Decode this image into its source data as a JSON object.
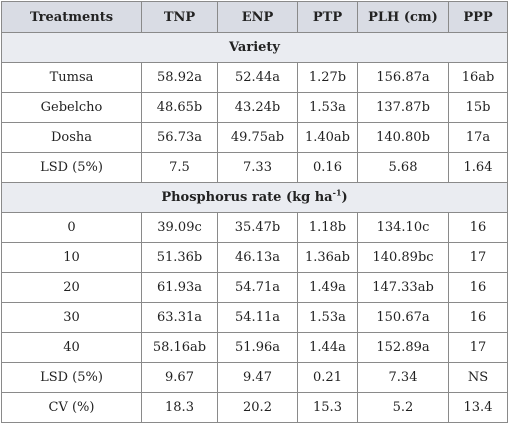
{
  "table": {
    "headers": [
      "Treatments",
      "TNP",
      "ENP",
      "PTP",
      "PLH (cm)",
      "PPP"
    ],
    "sections": [
      {
        "title": "Variety",
        "rows": [
          [
            "Tumsa",
            "58.92a",
            "52.44a",
            "1.27b",
            "156.87a",
            "16ab"
          ],
          [
            "Gebelcho",
            "48.65b",
            "43.24b",
            "1.53a",
            "137.87b",
            "15b"
          ],
          [
            "Dosha",
            "56.73a",
            "49.75ab",
            "1.40ab",
            "140.80b",
            "17a"
          ],
          [
            "LSD (5%)",
            "7.5",
            "7.33",
            "0.16",
            "5.68",
            "1.64"
          ]
        ]
      },
      {
        "title": "Phosphorus rate (kg ha",
        "title_sup": "-1",
        "title_end": ")",
        "rows": [
          [
            "0",
            "39.09c",
            "35.47b",
            "1.18b",
            "134.10c",
            "16"
          ],
          [
            "10",
            "51.36b",
            "46.13a",
            "1.36ab",
            "140.89bc",
            "17"
          ],
          [
            "20",
            "61.93a",
            "54.71a",
            "1.49a",
            "147.33ab",
            "16"
          ],
          [
            "30",
            "63.31a",
            "54.11a",
            "1.53a",
            "150.67a",
            "16"
          ],
          [
            "40",
            "58.16ab",
            "51.96a",
            "1.44a",
            "152.89a",
            "17"
          ],
          [
            "LSD (5%)",
            "9.67",
            "9.47",
            "0.21",
            "7.34",
            "NS"
          ],
          [
            "CV (%)",
            "18.3",
            "20.2",
            "15.3",
            "5.2",
            "13.4"
          ]
        ]
      }
    ]
  }
}
